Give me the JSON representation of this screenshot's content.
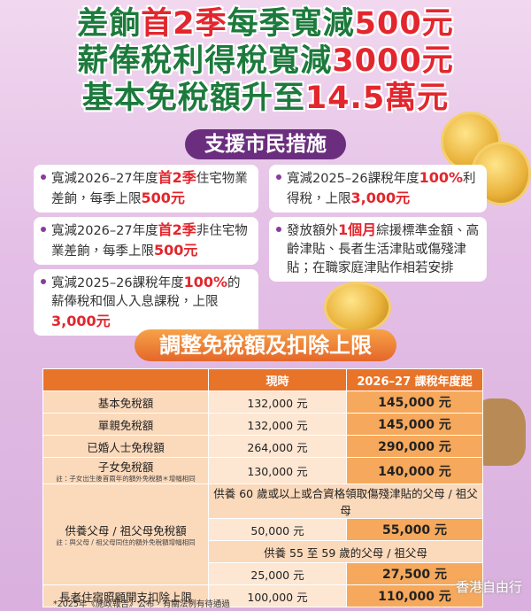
{
  "headline": {
    "lines": [
      {
        "segments": [
          {
            "text": "差餉",
            "highlight": false
          },
          {
            "text": "首2季",
            "highlight": true
          },
          {
            "text": "每季寬減",
            "highlight": false
          },
          {
            "text": "500元",
            "highlight": true
          }
        ]
      },
      {
        "segments": [
          {
            "text": "薪俸稅利得稅寬減",
            "highlight": false
          },
          {
            "text": "3000元",
            "highlight": true
          }
        ]
      },
      {
        "segments": [
          {
            "text": "基本免稅額升至",
            "highlight": false
          },
          {
            "text": "14.5萬元",
            "highlight": true
          }
        ]
      }
    ]
  },
  "measures_title": "支援市民措施",
  "measures": {
    "left": [
      {
        "segments": [
          {
            "text": "寬減2026–27年度",
            "highlight": false
          },
          {
            "text": "首2季",
            "highlight": true
          },
          {
            "text": "住宅物業差餉，每季上限",
            "highlight": false
          },
          {
            "text": "500元",
            "highlight": true
          }
        ]
      },
      {
        "segments": [
          {
            "text": "寬減2026–27年度",
            "highlight": false
          },
          {
            "text": "首2季",
            "highlight": true
          },
          {
            "text": "非住宅物業差餉，每季上限",
            "highlight": false
          },
          {
            "text": "500元",
            "highlight": true
          }
        ]
      },
      {
        "segments": [
          {
            "text": "寬減2025–26課稅年度",
            "highlight": false
          },
          {
            "text": "100%",
            "highlight": true
          },
          {
            "text": "的薪俸稅和個人入息課稅，上限",
            "highlight": false
          },
          {
            "text": "3,000元",
            "highlight": true
          }
        ]
      }
    ],
    "right": [
      {
        "segments": [
          {
            "text": "寬減2025–26課稅年度",
            "highlight": false
          },
          {
            "text": "100%",
            "highlight": true
          },
          {
            "text": "利得稅，上限",
            "highlight": false
          },
          {
            "text": "3,000元",
            "highlight": true
          }
        ]
      },
      {
        "segments": [
          {
            "text": "發放額外",
            "highlight": false
          },
          {
            "text": "1個月",
            "highlight": true
          },
          {
            "text": "綜援標準金額、高齡津貼、長者生活津貼或傷殘津貼；在職家庭津貼作相若安排",
            "highlight": false
          }
        ]
      }
    ]
  },
  "table_title": "調整免稅額及扣除上限",
  "table": {
    "header": [
      "現時",
      "2026–27 課稅年度起"
    ],
    "rows": [
      {
        "label": "基本免稅額",
        "current": "132,000 元",
        "new": "145,000 元"
      },
      {
        "label": "單親免稅額",
        "current": "132,000 元",
        "new": "145,000 元"
      },
      {
        "label": "已婚人士免稅額",
        "current": "264,000 元",
        "new": "290,000 元"
      },
      {
        "label": "子女免稅額",
        "note": "註：子女出生後首兩年的額外免稅額＊增幅相同",
        "current": "130,000 元",
        "new": "140,000 元"
      },
      {
        "label": "供養父母 / 祖父母免稅額",
        "note": "註：與父母 / 祖父母同住的額外免稅額增幅相同",
        "groups": [
          {
            "condition": "供養 60 歲或以上或合資格領取傷殘津貼的父母 / 祖父母",
            "current": "50,000 元",
            "new": "55,000 元"
          },
          {
            "condition": "供養 55 至 59 歲的父母 / 祖父母",
            "current": "25,000 元",
            "new": "27,500 元"
          }
        ]
      },
      {
        "label": "長者住宿照顧開支扣除上限",
        "current": "100,000 元",
        "new": "110,000 元"
      }
    ]
  },
  "footnote": "*2025年《施政報告》公布，有關法例有待通過",
  "watermark": "香港自由行"
}
